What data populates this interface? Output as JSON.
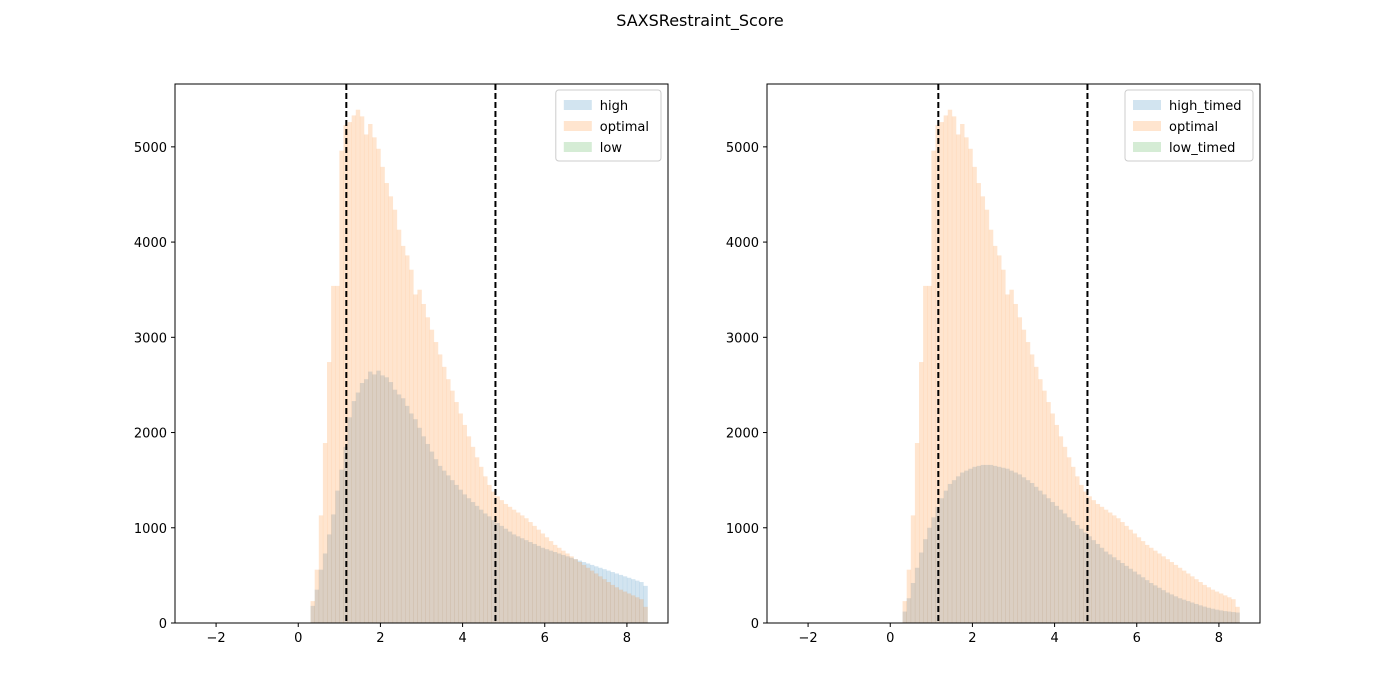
{
  "figure": {
    "title": "SAXSRestraint_Score"
  },
  "colors": {
    "high": "#1f77b4",
    "optimal": "#ff7f0e",
    "low": "#2ca02c",
    "threshold": "#000000"
  },
  "chart_data": [
    {
      "type": "histogram",
      "xlim": [
        -3,
        9
      ],
      "ylim": [
        0,
        5660
      ],
      "xticks": [
        -2,
        0,
        2,
        4,
        6,
        8
      ],
      "yticks": [
        0,
        1000,
        2000,
        3000,
        4000,
        5000
      ],
      "legend_position": "top-right",
      "grid": false,
      "threshold_lines": [
        1.17,
        4.8
      ],
      "bins": {
        "start": 0.3,
        "width": 0.1,
        "count": 82
      },
      "series": [
        {
          "name": "high",
          "color": "#1f77b4",
          "alpha": 0.2,
          "values": [
            180,
            350,
            560,
            730,
            930,
            1140,
            1390,
            1610,
            1850,
            2160,
            2330,
            2420,
            2520,
            2560,
            2640,
            2610,
            2650,
            2600,
            2580,
            2530,
            2450,
            2400,
            2360,
            2280,
            2200,
            2140,
            2050,
            1960,
            1880,
            1800,
            1720,
            1650,
            1600,
            1550,
            1500,
            1450,
            1400,
            1350,
            1310,
            1270,
            1230,
            1190,
            1150,
            1120,
            1080,
            1050,
            1020,
            990,
            960,
            930,
            910,
            890,
            870,
            850,
            830,
            810,
            790,
            775,
            760,
            745,
            730,
            715,
            700,
            685,
            670,
            655,
            640,
            625,
            610,
            595,
            580,
            565,
            550,
            535,
            520,
            505,
            490,
            475,
            460,
            445,
            430,
            390
          ]
        },
        {
          "name": "optimal",
          "color": "#ff7f0e",
          "alpha": 0.2,
          "values": [
            230,
            560,
            1130,
            1890,
            2740,
            3540,
            3540,
            4960,
            5230,
            5260,
            5330,
            5390,
            5320,
            5130,
            5240,
            5100,
            4980,
            4790,
            4620,
            4480,
            4340,
            4130,
            3960,
            3860,
            3710,
            3450,
            3500,
            3350,
            3210,
            3080,
            2950,
            2820,
            2690,
            2560,
            2440,
            2320,
            2200,
            2080,
            1960,
            1850,
            1740,
            1640,
            1540,
            1450,
            1380,
            1330,
            1290,
            1250,
            1220,
            1190,
            1160,
            1130,
            1100,
            1060,
            1020,
            980,
            940,
            900,
            860,
            820,
            790,
            760,
            730,
            700,
            670,
            640,
            610,
            580,
            550,
            520,
            490,
            460,
            430,
            400,
            375,
            350,
            330,
            310,
            290,
            270,
            250,
            170
          ]
        },
        {
          "name": "low",
          "color": "#2ca02c",
          "alpha": 0.2,
          "values": []
        }
      ]
    },
    {
      "type": "histogram",
      "xlim": [
        -3,
        9
      ],
      "ylim": [
        0,
        5660
      ],
      "xticks": [
        -2,
        0,
        2,
        4,
        6,
        8
      ],
      "yticks": [
        0,
        1000,
        2000,
        3000,
        4000,
        5000
      ],
      "legend_position": "top-right",
      "grid": false,
      "threshold_lines": [
        1.17,
        4.8
      ],
      "bins": {
        "start": 0.3,
        "width": 0.1,
        "count": 82
      },
      "series": [
        {
          "name": "high_timed",
          "color": "#1f77b4",
          "alpha": 0.2,
          "values": [
            120,
            260,
            420,
            580,
            740,
            880,
            1000,
            1110,
            1220,
            1310,
            1390,
            1460,
            1500,
            1540,
            1580,
            1600,
            1620,
            1640,
            1650,
            1660,
            1660,
            1660,
            1650,
            1640,
            1630,
            1620,
            1600,
            1580,
            1560,
            1530,
            1500,
            1470,
            1430,
            1390,
            1350,
            1310,
            1270,
            1230,
            1190,
            1150,
            1110,
            1070,
            1030,
            990,
            950,
            910,
            870,
            830,
            790,
            750,
            720,
            690,
            660,
            630,
            600,
            570,
            540,
            510,
            480,
            450,
            420,
            395,
            370,
            345,
            320,
            300,
            280,
            260,
            245,
            230,
            215,
            200,
            185,
            172,
            160,
            150,
            140,
            132,
            125,
            120,
            115,
            110
          ]
        },
        {
          "name": "optimal",
          "color": "#ff7f0e",
          "alpha": 0.2,
          "values": [
            230,
            560,
            1130,
            1890,
            2740,
            3540,
            3540,
            4960,
            5230,
            5260,
            5330,
            5390,
            5320,
            5130,
            5240,
            5100,
            4980,
            4790,
            4620,
            4480,
            4340,
            4130,
            3960,
            3860,
            3710,
            3450,
            3500,
            3350,
            3210,
            3080,
            2950,
            2820,
            2690,
            2560,
            2440,
            2320,
            2200,
            2080,
            1960,
            1850,
            1740,
            1640,
            1540,
            1450,
            1380,
            1330,
            1290,
            1250,
            1220,
            1190,
            1160,
            1130,
            1100,
            1060,
            1020,
            980,
            940,
            900,
            860,
            820,
            790,
            760,
            730,
            700,
            670,
            640,
            610,
            580,
            550,
            520,
            490,
            460,
            430,
            400,
            375,
            350,
            330,
            310,
            290,
            270,
            250,
            170
          ]
        },
        {
          "name": "low_timed",
          "color": "#2ca02c",
          "alpha": 0.2,
          "values": []
        }
      ]
    }
  ]
}
